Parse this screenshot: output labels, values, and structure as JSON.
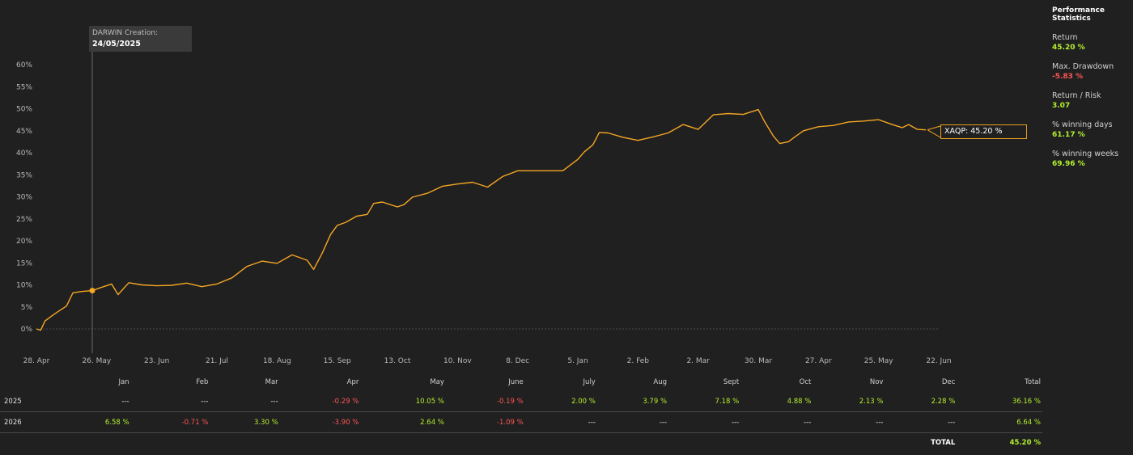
{
  "colors": {
    "line": "#f5a623",
    "green": "#b4f02e",
    "red": "#ff5555",
    "neutral": "#e8e8e8"
  },
  "chart_data": {
    "type": "line",
    "series": [
      {
        "name": "XAQP",
        "x": [
          "2025-04-28",
          "2025-04-30",
          "2025-05-02",
          "2025-05-05",
          "2025-05-08",
          "2025-05-12",
          "2025-05-15",
          "2025-05-19",
          "2025-05-24",
          "2025-05-28",
          "2025-06-02",
          "2025-06-05",
          "2025-06-10",
          "2025-06-16",
          "2025-06-23",
          "2025-06-30",
          "2025-07-07",
          "2025-07-14",
          "2025-07-21",
          "2025-07-28",
          "2025-08-04",
          "2025-08-11",
          "2025-08-18",
          "2025-08-25",
          "2025-09-01",
          "2025-09-04",
          "2025-09-08",
          "2025-09-12",
          "2025-09-15",
          "2025-09-19",
          "2025-09-24",
          "2025-09-29",
          "2025-10-02",
          "2025-10-06",
          "2025-10-13",
          "2025-10-16",
          "2025-10-20",
          "2025-10-27",
          "2025-11-03",
          "2025-11-10",
          "2025-11-17",
          "2025-11-24",
          "2025-12-01",
          "2025-12-08",
          "2025-12-15",
          "2025-12-22",
          "2025-12-29",
          "2026-01-05",
          "2026-01-08",
          "2026-01-12",
          "2026-01-15",
          "2026-01-19",
          "2026-01-26",
          "2026-02-02",
          "2026-02-09",
          "2026-02-16",
          "2026-02-23",
          "2026-03-02",
          "2026-03-09",
          "2026-03-16",
          "2026-03-23",
          "2026-03-30",
          "2026-04-02",
          "2026-04-06",
          "2026-04-09",
          "2026-04-13",
          "2026-04-16",
          "2026-04-20",
          "2026-04-27",
          "2026-05-04",
          "2026-05-11",
          "2026-05-18",
          "2026-05-25",
          "2026-06-01",
          "2026-06-05",
          "2026-06-08",
          "2026-06-12",
          "2026-06-16"
        ],
        "y": [
          0.0,
          -0.3,
          1.8,
          2.9,
          3.9,
          5.2,
          8.2,
          8.5,
          8.7,
          9.4,
          10.2,
          7.8,
          10.5,
          10.0,
          9.8,
          9.9,
          10.4,
          9.6,
          10.2,
          11.6,
          14.2,
          15.4,
          14.9,
          16.8,
          15.6,
          13.5,
          17.2,
          21.5,
          23.5,
          24.2,
          25.6,
          26.0,
          28.5,
          28.8,
          27.7,
          28.2,
          29.9,
          30.8,
          32.4,
          32.9,
          33.3,
          32.2,
          34.6,
          35.9,
          35.9,
          35.9,
          35.9,
          38.5,
          40.2,
          41.8,
          44.6,
          44.5,
          43.5,
          42.8,
          43.6,
          44.5,
          46.4,
          45.3,
          48.6,
          48.9,
          48.7,
          49.8,
          47.0,
          43.8,
          42.1,
          42.5,
          43.6,
          45.0,
          45.9,
          46.2,
          47.0,
          47.2,
          47.5,
          46.3,
          45.7,
          46.4,
          45.3,
          45.2
        ]
      }
    ],
    "ytick_labels": [
      "0%",
      "5%",
      "10%",
      "15%",
      "20%",
      "25%",
      "30%",
      "35%",
      "40%",
      "45%",
      "50%",
      "55%",
      "60%"
    ],
    "ylim": [
      0,
      60
    ],
    "xtick_labels": [
      "28. Apr",
      "26. May",
      "23. Jun",
      "21. Jul",
      "18. Aug",
      "15. Sep",
      "13. Oct",
      "10. Nov",
      "8. Dec",
      "5. Jan",
      "2. Feb",
      "2. Mar",
      "30. Mar",
      "27. Apr",
      "25. May",
      "22. Jun"
    ],
    "xticks": [
      "2025-04-28",
      "2025-05-26",
      "2025-06-23",
      "2025-07-21",
      "2025-08-18",
      "2025-09-15",
      "2025-10-13",
      "2025-11-10",
      "2025-12-08",
      "2026-01-05",
      "2026-02-02",
      "2026-03-02",
      "2026-03-30",
      "2026-04-27",
      "2026-05-25",
      "2026-06-22"
    ],
    "annotations": [
      {
        "type": "marker",
        "x": "2025-05-24",
        "y": 8.7,
        "label": "DARWIN Creation:",
        "date": "24/05/2025"
      },
      {
        "type": "last-value",
        "label": "XAQP: 45.20 %"
      }
    ]
  },
  "creation": {
    "label": "DARWIN Creation:",
    "date": "24/05/2025"
  },
  "last_value_label": "XAQP: 45.20 %",
  "stats": {
    "title": "Performance Statistics",
    "items": [
      {
        "label": "Return",
        "value": "45.20 %",
        "tone": "green"
      },
      {
        "label": "Max. Drawdown",
        "value": "-5.83 %",
        "tone": "red"
      },
      {
        "label": "Return / Risk",
        "value": "3.07",
        "tone": "green"
      },
      {
        "label": "% winning days",
        "value": "61.17 %",
        "tone": "green"
      },
      {
        "label": "% winning weeks",
        "value": "69.96 %",
        "tone": "green"
      }
    ]
  },
  "table": {
    "headers": [
      "",
      "Jan",
      "Feb",
      "Mar",
      "Apr",
      "May",
      "June",
      "July",
      "Aug",
      "Sept",
      "Oct",
      "Nov",
      "Dec",
      "Total"
    ],
    "rows": [
      {
        "year": "2025",
        "cells": [
          {
            "v": "---",
            "t": "neutral"
          },
          {
            "v": "---",
            "t": "neutral"
          },
          {
            "v": "---",
            "t": "neutral"
          },
          {
            "v": "-0.29 %",
            "t": "red"
          },
          {
            "v": "10.05 %",
            "t": "green"
          },
          {
            "v": "-0.19 %",
            "t": "red"
          },
          {
            "v": "2.00 %",
            "t": "green"
          },
          {
            "v": "3.79 %",
            "t": "green"
          },
          {
            "v": "7.18 %",
            "t": "green"
          },
          {
            "v": "4.88 %",
            "t": "green"
          },
          {
            "v": "2.13 %",
            "t": "green"
          },
          {
            "v": "2.28 %",
            "t": "green"
          },
          {
            "v": "36.16 %",
            "t": "green"
          }
        ]
      },
      {
        "year": "2026",
        "cells": [
          {
            "v": "6.58 %",
            "t": "green"
          },
          {
            "v": "-0.71 %",
            "t": "red"
          },
          {
            "v": "3.30 %",
            "t": "green"
          },
          {
            "v": "-3.90 %",
            "t": "red"
          },
          {
            "v": "2.64 %",
            "t": "green"
          },
          {
            "v": "-1.09 %",
            "t": "red"
          },
          {
            "v": "---",
            "t": "neutral"
          },
          {
            "v": "---",
            "t": "neutral"
          },
          {
            "v": "---",
            "t": "neutral"
          },
          {
            "v": "---",
            "t": "neutral"
          },
          {
            "v": "---",
            "t": "neutral"
          },
          {
            "v": "---",
            "t": "neutral"
          },
          {
            "v": "6.64 %",
            "t": "green"
          }
        ]
      }
    ],
    "total_label": "TOTAL",
    "total_value": "45.20 %"
  }
}
